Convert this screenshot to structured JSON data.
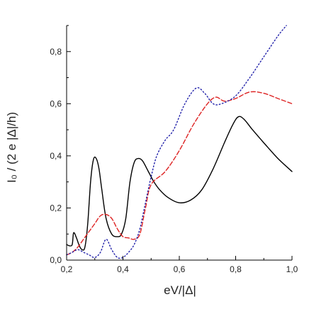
{
  "chart_data": {
    "type": "line",
    "xlabel": "eV/|Δ|",
    "ylabel": "I₀ / (2 e |Δ|/h)",
    "xlim": [
      0.2,
      1.0
    ],
    "ylim": [
      0.0,
      0.9
    ],
    "x_ticks": [
      0.2,
      0.4,
      0.6,
      0.8,
      1.0
    ],
    "x_tick_labels": [
      "0,2",
      "0,4",
      "0,6",
      "0,8",
      "1,0"
    ],
    "y_ticks": [
      0.0,
      0.2,
      0.4,
      0.6,
      0.8
    ],
    "y_tick_labels": [
      "0,0",
      "0,2",
      "0,4",
      "0,6",
      "0,8"
    ],
    "grid": false,
    "series": [
      {
        "color": "#000000",
        "style": "solid",
        "x": [
          0.2,
          0.21,
          0.22,
          0.225,
          0.235,
          0.245,
          0.255,
          0.265,
          0.275,
          0.285,
          0.295,
          0.305,
          0.315,
          0.325,
          0.34,
          0.36,
          0.38,
          0.395,
          0.41,
          0.425,
          0.44,
          0.455,
          0.47,
          0.49,
          0.51,
          0.53,
          0.56,
          0.6,
          0.64,
          0.68,
          0.72,
          0.76,
          0.79,
          0.81,
          0.83,
          0.86,
          0.9,
          0.95,
          1.0
        ],
        "y": [
          0.06,
          0.055,
          0.06,
          0.105,
          0.085,
          0.055,
          0.04,
          0.05,
          0.14,
          0.3,
          0.385,
          0.39,
          0.35,
          0.27,
          0.16,
          0.1,
          0.09,
          0.1,
          0.16,
          0.3,
          0.375,
          0.39,
          0.38,
          0.34,
          0.3,
          0.27,
          0.24,
          0.22,
          0.23,
          0.27,
          0.35,
          0.45,
          0.52,
          0.55,
          0.54,
          0.5,
          0.45,
          0.39,
          0.34
        ]
      },
      {
        "color": "#dd2222",
        "style": "dashed",
        "x": [
          0.2,
          0.22,
          0.24,
          0.26,
          0.28,
          0.3,
          0.32,
          0.34,
          0.36,
          0.38,
          0.4,
          0.42,
          0.44,
          0.46,
          0.48,
          0.5,
          0.55,
          0.6,
          0.65,
          0.7,
          0.73,
          0.76,
          0.8,
          0.85,
          0.9,
          0.95,
          1.0
        ],
        "y": [
          0.02,
          0.03,
          0.05,
          0.08,
          0.11,
          0.14,
          0.17,
          0.175,
          0.16,
          0.12,
          0.09,
          0.085,
          0.08,
          0.1,
          0.2,
          0.29,
          0.34,
          0.42,
          0.52,
          0.6,
          0.625,
          0.61,
          0.62,
          0.645,
          0.64,
          0.62,
          0.6
        ]
      },
      {
        "color": "#2222aa",
        "style": "dotted",
        "x": [
          0.2,
          0.22,
          0.24,
          0.26,
          0.28,
          0.3,
          0.32,
          0.34,
          0.36,
          0.38,
          0.4,
          0.42,
          0.44,
          0.46,
          0.48,
          0.5,
          0.52,
          0.55,
          0.58,
          0.62,
          0.66,
          0.69,
          0.72,
          0.75,
          0.8,
          0.85,
          0.9,
          0.95,
          0.98
        ],
        "y": [
          0.02,
          0.03,
          0.04,
          0.03,
          0.02,
          0.01,
          0.03,
          0.08,
          0.04,
          0.01,
          0.01,
          0.03,
          0.06,
          0.12,
          0.22,
          0.32,
          0.4,
          0.46,
          0.5,
          0.6,
          0.66,
          0.64,
          0.6,
          0.6,
          0.63,
          0.7,
          0.78,
          0.86,
          0.9
        ]
      }
    ]
  }
}
